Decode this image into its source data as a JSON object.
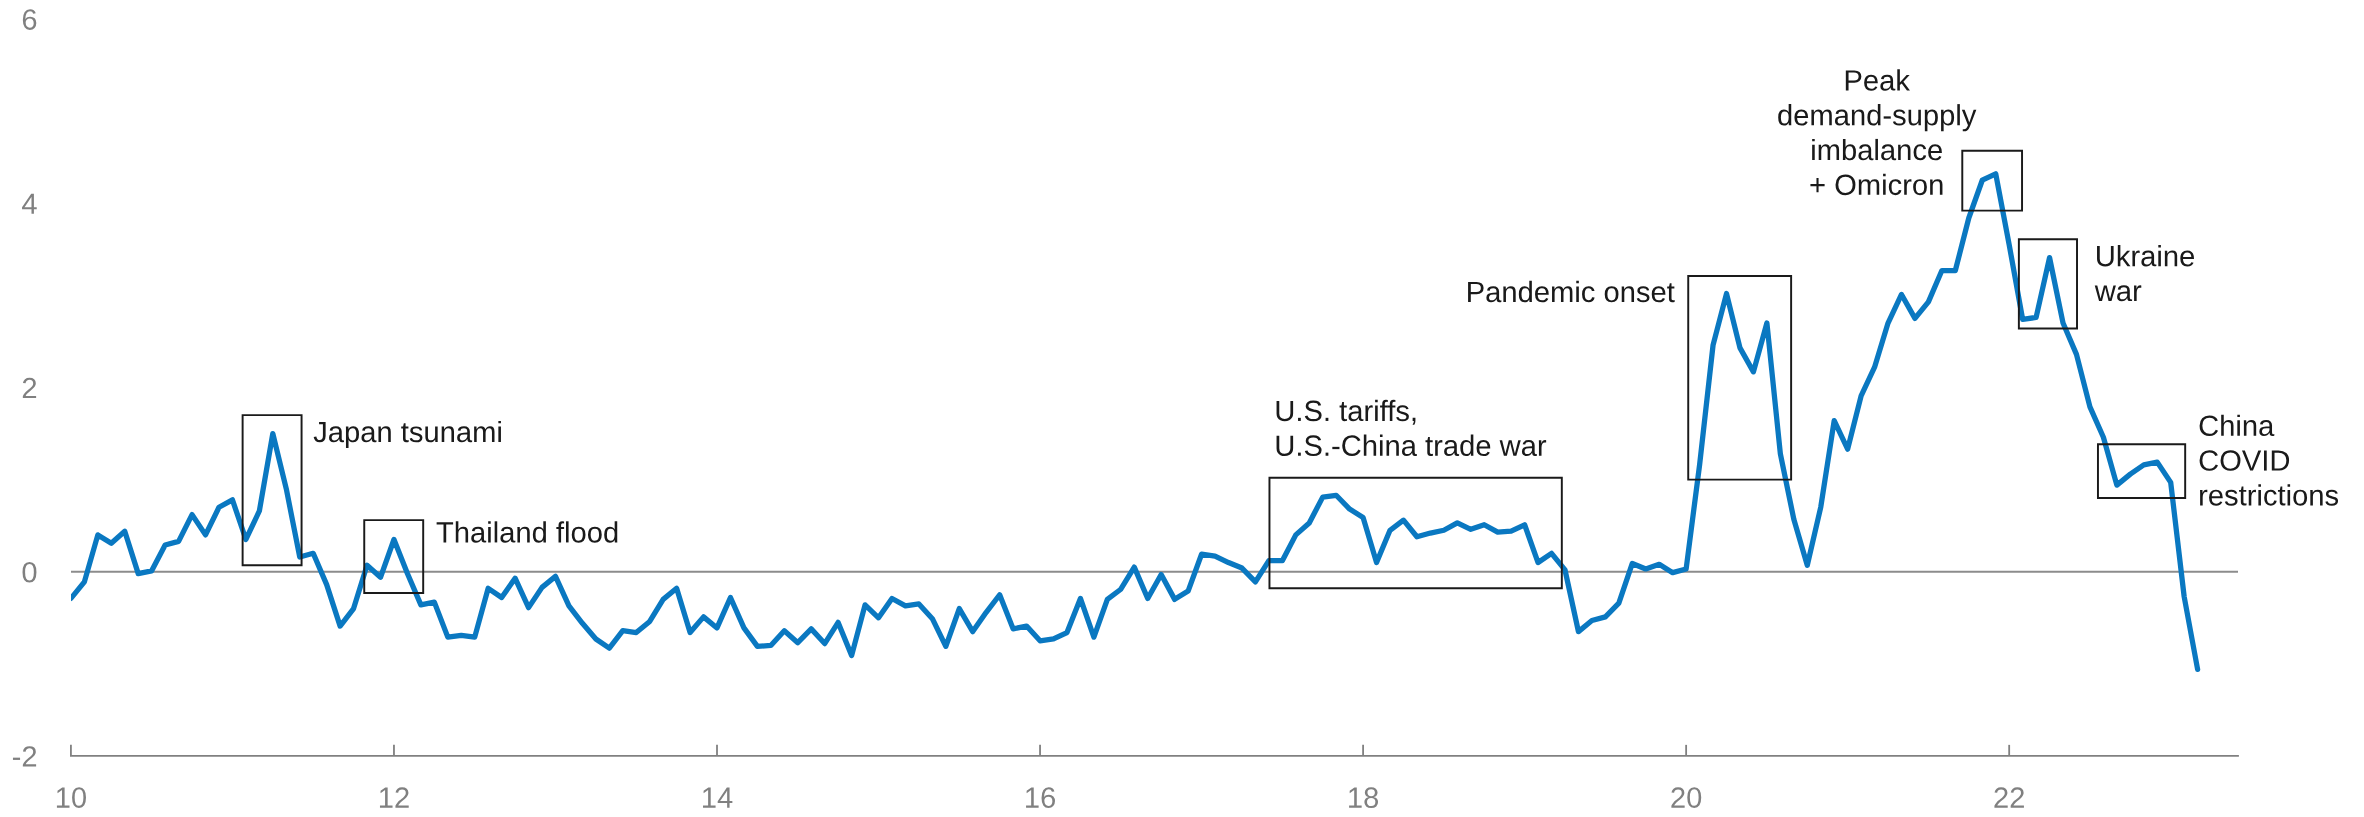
{
  "chart_data": {
    "type": "line",
    "x": [
      "2010-01",
      "2010-02",
      "2010-03",
      "2010-04",
      "2010-05",
      "2010-06",
      "2010-07",
      "2010-08",
      "2010-09",
      "2010-10",
      "2010-11",
      "2010-12",
      "2011-01",
      "2011-02",
      "2011-03",
      "2011-04",
      "2011-05",
      "2011-06",
      "2011-07",
      "2011-08",
      "2011-09",
      "2011-10",
      "2011-11",
      "2011-12",
      "2012-01",
      "2012-02",
      "2012-03",
      "2012-04",
      "2012-05",
      "2012-06",
      "2012-07",
      "2012-08",
      "2012-09",
      "2012-10",
      "2012-11",
      "2012-12",
      "2013-01",
      "2013-02",
      "2013-03",
      "2013-04",
      "2013-05",
      "2013-06",
      "2013-07",
      "2013-08",
      "2013-09",
      "2013-10",
      "2013-11",
      "2013-12",
      "2014-01",
      "2014-02",
      "2014-03",
      "2014-04",
      "2014-05",
      "2014-06",
      "2014-07",
      "2014-08",
      "2014-09",
      "2014-10",
      "2014-11",
      "2014-12",
      "2015-01",
      "2015-02",
      "2015-03",
      "2015-04",
      "2015-05",
      "2015-06",
      "2015-07",
      "2015-08",
      "2015-09",
      "2015-10",
      "2015-11",
      "2015-12",
      "2016-01",
      "2016-02",
      "2016-03",
      "2016-04",
      "2016-05",
      "2016-06",
      "2016-07",
      "2016-08",
      "2016-09",
      "2016-10",
      "2016-11",
      "2016-12",
      "2017-01",
      "2017-02",
      "2017-03",
      "2017-04",
      "2017-05",
      "2017-06",
      "2017-07",
      "2017-08",
      "2017-09",
      "2017-10",
      "2017-11",
      "2017-12",
      "2018-01",
      "2018-02",
      "2018-03",
      "2018-04",
      "2018-05",
      "2018-06",
      "2018-07",
      "2018-08",
      "2018-09",
      "2018-10",
      "2018-11",
      "2018-12",
      "2019-01",
      "2019-02",
      "2019-03",
      "2019-04",
      "2019-05",
      "2019-06",
      "2019-07",
      "2019-08",
      "2019-09",
      "2019-10",
      "2019-11",
      "2019-12",
      "2020-01",
      "2020-02",
      "2020-03",
      "2020-04",
      "2020-05",
      "2020-06",
      "2020-07",
      "2020-08",
      "2020-09",
      "2020-10",
      "2020-11",
      "2020-12",
      "2021-01",
      "2021-02",
      "2021-03",
      "2021-04",
      "2021-05",
      "2021-06",
      "2021-07",
      "2021-08",
      "2021-09",
      "2021-10",
      "2021-11",
      "2021-12",
      "2022-01",
      "2022-02",
      "2022-03",
      "2022-04",
      "2022-05",
      "2022-06",
      "2022-07",
      "2022-08",
      "2022-09",
      "2022-10",
      "2022-11",
      "2022-12",
      "2023-01",
      "2023-02",
      "2023-03"
    ],
    "series": [
      {
        "color": "#0a78c1",
        "values": [
          -0.29,
          -0.11,
          0.4,
          0.31,
          0.44,
          -0.02,
          0.01,
          0.29,
          0.33,
          0.62,
          0.4,
          0.7,
          0.78,
          0.35,
          0.66,
          1.5,
          0.9,
          0.16,
          0.2,
          -0.14,
          -0.59,
          -0.4,
          0.07,
          -0.06,
          0.35,
          -0.02,
          -0.36,
          -0.33,
          -0.71,
          -0.69,
          -0.71,
          -0.18,
          -0.28,
          -0.07,
          -0.39,
          -0.17,
          -0.05,
          -0.37,
          -0.56,
          -0.73,
          -0.83,
          -0.64,
          -0.66,
          -0.54,
          -0.3,
          -0.18,
          -0.66,
          -0.49,
          -0.61,
          -0.28,
          -0.61,
          -0.81,
          -0.8,
          -0.64,
          -0.77,
          -0.62,
          -0.78,
          -0.55,
          -0.91,
          -0.36,
          -0.5,
          -0.29,
          -0.37,
          -0.35,
          -0.51,
          -0.81,
          -0.4,
          -0.65,
          -0.44,
          -0.25,
          -0.62,
          -0.59,
          -0.75,
          -0.73,
          -0.66,
          -0.29,
          -0.71,
          -0.3,
          -0.19,
          0.05,
          -0.29,
          -0.03,
          -0.3,
          -0.21,
          0.19,
          0.17,
          0.1,
          0.04,
          -0.11,
          0.12,
          0.12,
          0.4,
          0.53,
          0.81,
          0.83,
          0.68,
          0.59,
          0.1,
          0.45,
          0.56,
          0.38,
          0.42,
          0.45,
          0.53,
          0.46,
          0.51,
          0.43,
          0.44,
          0.51,
          0.1,
          0.2,
          0.02,
          -0.65,
          -0.53,
          -0.49,
          -0.34,
          0.09,
          0.03,
          0.08,
          -0.01,
          0.03,
          1.16,
          2.46,
          3.02,
          2.43,
          2.17,
          2.7,
          1.28,
          0.57,
          0.07,
          0.7,
          1.64,
          1.33,
          1.91,
          2.22,
          2.7,
          3.01,
          2.75,
          2.93,
          3.27,
          3.27,
          3.84,
          4.25,
          4.32,
          3.55,
          2.74,
          2.76,
          3.41,
          2.7,
          2.36,
          1.79,
          1.46,
          0.94,
          1.06,
          1.16,
          1.19,
          0.97,
          -0.27,
          -1.06
        ]
      }
    ],
    "xlim": [
      "2010-01",
      "2023-06"
    ],
    "xticks": [
      {
        "value": "2010-01",
        "label": "10"
      },
      {
        "value": "2012-01",
        "label": "12"
      },
      {
        "value": "2014-01",
        "label": "14"
      },
      {
        "value": "2016-01",
        "label": "16"
      },
      {
        "value": "2018-01",
        "label": "18"
      },
      {
        "value": "2020-01",
        "label": "20"
      },
      {
        "value": "2022-01",
        "label": "22"
      }
    ],
    "ylim": [
      -2,
      6
    ],
    "yticks": [
      -2,
      0,
      2,
      4,
      6
    ],
    "ref_lines": [
      {
        "axis": "y",
        "value": 0,
        "color": "#8c8c8c"
      }
    ],
    "annotations": [
      {
        "text": "Japan tsunami",
        "x": "2011-04",
        "y": 1.5
      },
      {
        "text": "Thailand flood",
        "x": "2012-01",
        "y": 0.35
      },
      {
        "text": "U.S. tariffs,\nU.S.-China trade war",
        "x": "2017-11",
        "y": 0.83
      },
      {
        "text": "Pandemic onset",
        "x": "2020-04",
        "y": 3.02
      },
      {
        "text": "Peak\ndemand-supply\nimbalance\n+ Omicron",
        "x": "2021-12",
        "y": 4.32
      },
      {
        "text": "Ukraine\nwar",
        "x": "2022-04",
        "y": 3.41
      },
      {
        "text": "China\nCOVID\nrestrictions",
        "x": "2022-12",
        "y": 1.19
      }
    ]
  }
}
